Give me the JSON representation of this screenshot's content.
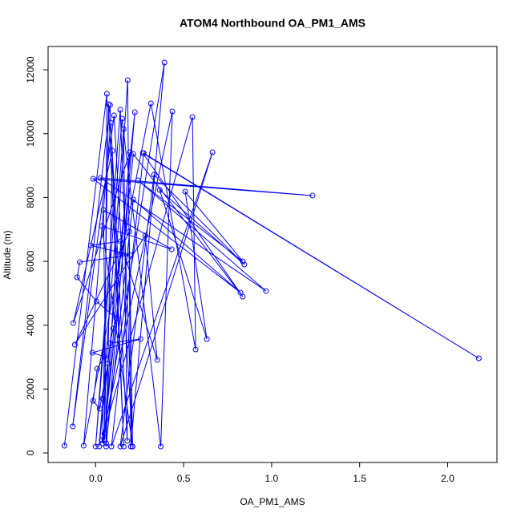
{
  "chart_data": {
    "type": "line",
    "title": "ATOM4 Northbound OA_PM1_AMS",
    "x_label": "OA_PM1_AMS",
    "y_label": "Altitude (m)",
    "xlim": [
      -0.27,
      2.28
    ],
    "ylim": [
      -300,
      12730
    ],
    "xticks": [
      {
        "value": 0,
        "label": "0.0"
      },
      {
        "value": 0.5,
        "label": "0.5"
      },
      {
        "value": 1,
        "label": "1.0"
      },
      {
        "value": 1.5,
        "label": "1.5"
      },
      {
        "value": 2,
        "label": "2.0"
      }
    ],
    "yticks": [
      0,
      2000,
      4000,
      6000,
      8000,
      10000,
      12000
    ],
    "x": [
      -0.177,
      0.064,
      0.05,
      0.182,
      0.2,
      0.391,
      0.04,
      0.073,
      0.16,
      0.082,
      -0.13,
      0.105,
      0.21,
      0.14,
      0.0,
      0.15,
      0.37,
      0.436,
      0.035,
      0.55,
      0.568,
      0.314,
      -0.068,
      0.086,
      0.18,
      0.159,
      0.02,
      0.223,
      0.06,
      0.095,
      -0.127,
      0.195,
      0.05,
      0.214,
      0.836,
      0.268,
      2.177,
      0.273,
      0.09,
      0.664,
      0.14,
      0.332,
      0.845,
      0.364,
      0.632,
      0.509,
      0.836,
      0.241,
      0.968,
      0.027,
      1.232,
      -0.014,
      0.823,
      0.214,
      0.06,
      0.045,
      0.432,
      0.036,
      0.21,
      0.191,
      -0.118,
      0.282,
      0.35,
      0.14,
      -0.027,
      0.195,
      -0.09,
      -0.105,
      0.005,
      0.118,
      0.1,
      0.082,
      0.255,
      -0.018,
      0.05,
      0.009,
      -0.014,
      0.023,
      0.07,
      0.04
    ],
    "series": [
      {
        "color": "#0000ff",
        "marker": "open-circle",
        "values": [
          226,
          11248,
          400,
          11675,
          200,
          12227,
          300,
          10921,
          200,
          10896,
          830,
          10570,
          200,
          10746,
          200,
          10470,
          200,
          10696,
          400,
          10520,
          3239,
          10946,
          226,
          10344,
          377,
          10143,
          200,
          10670,
          200,
          9465,
          4070,
          9415,
          600,
          9365,
          4896,
          9390,
          2963,
          9390,
          200,
          9415,
          200,
          8712,
          5900,
          8235,
          3565,
          8185,
          6000,
          8537,
          5071,
          8612,
          8059,
          8587,
          5021,
          7934,
          300,
          7607,
          6377,
          7105,
          200,
          6930,
          3390,
          6804,
          2912,
          6628,
          6500,
          6201,
          5975,
          5500,
          4745,
          4218,
          3892,
          3440,
          3565,
          3138,
          3013,
          2636,
          1632,
          1381,
          2800,
          1700
        ]
      }
    ]
  }
}
